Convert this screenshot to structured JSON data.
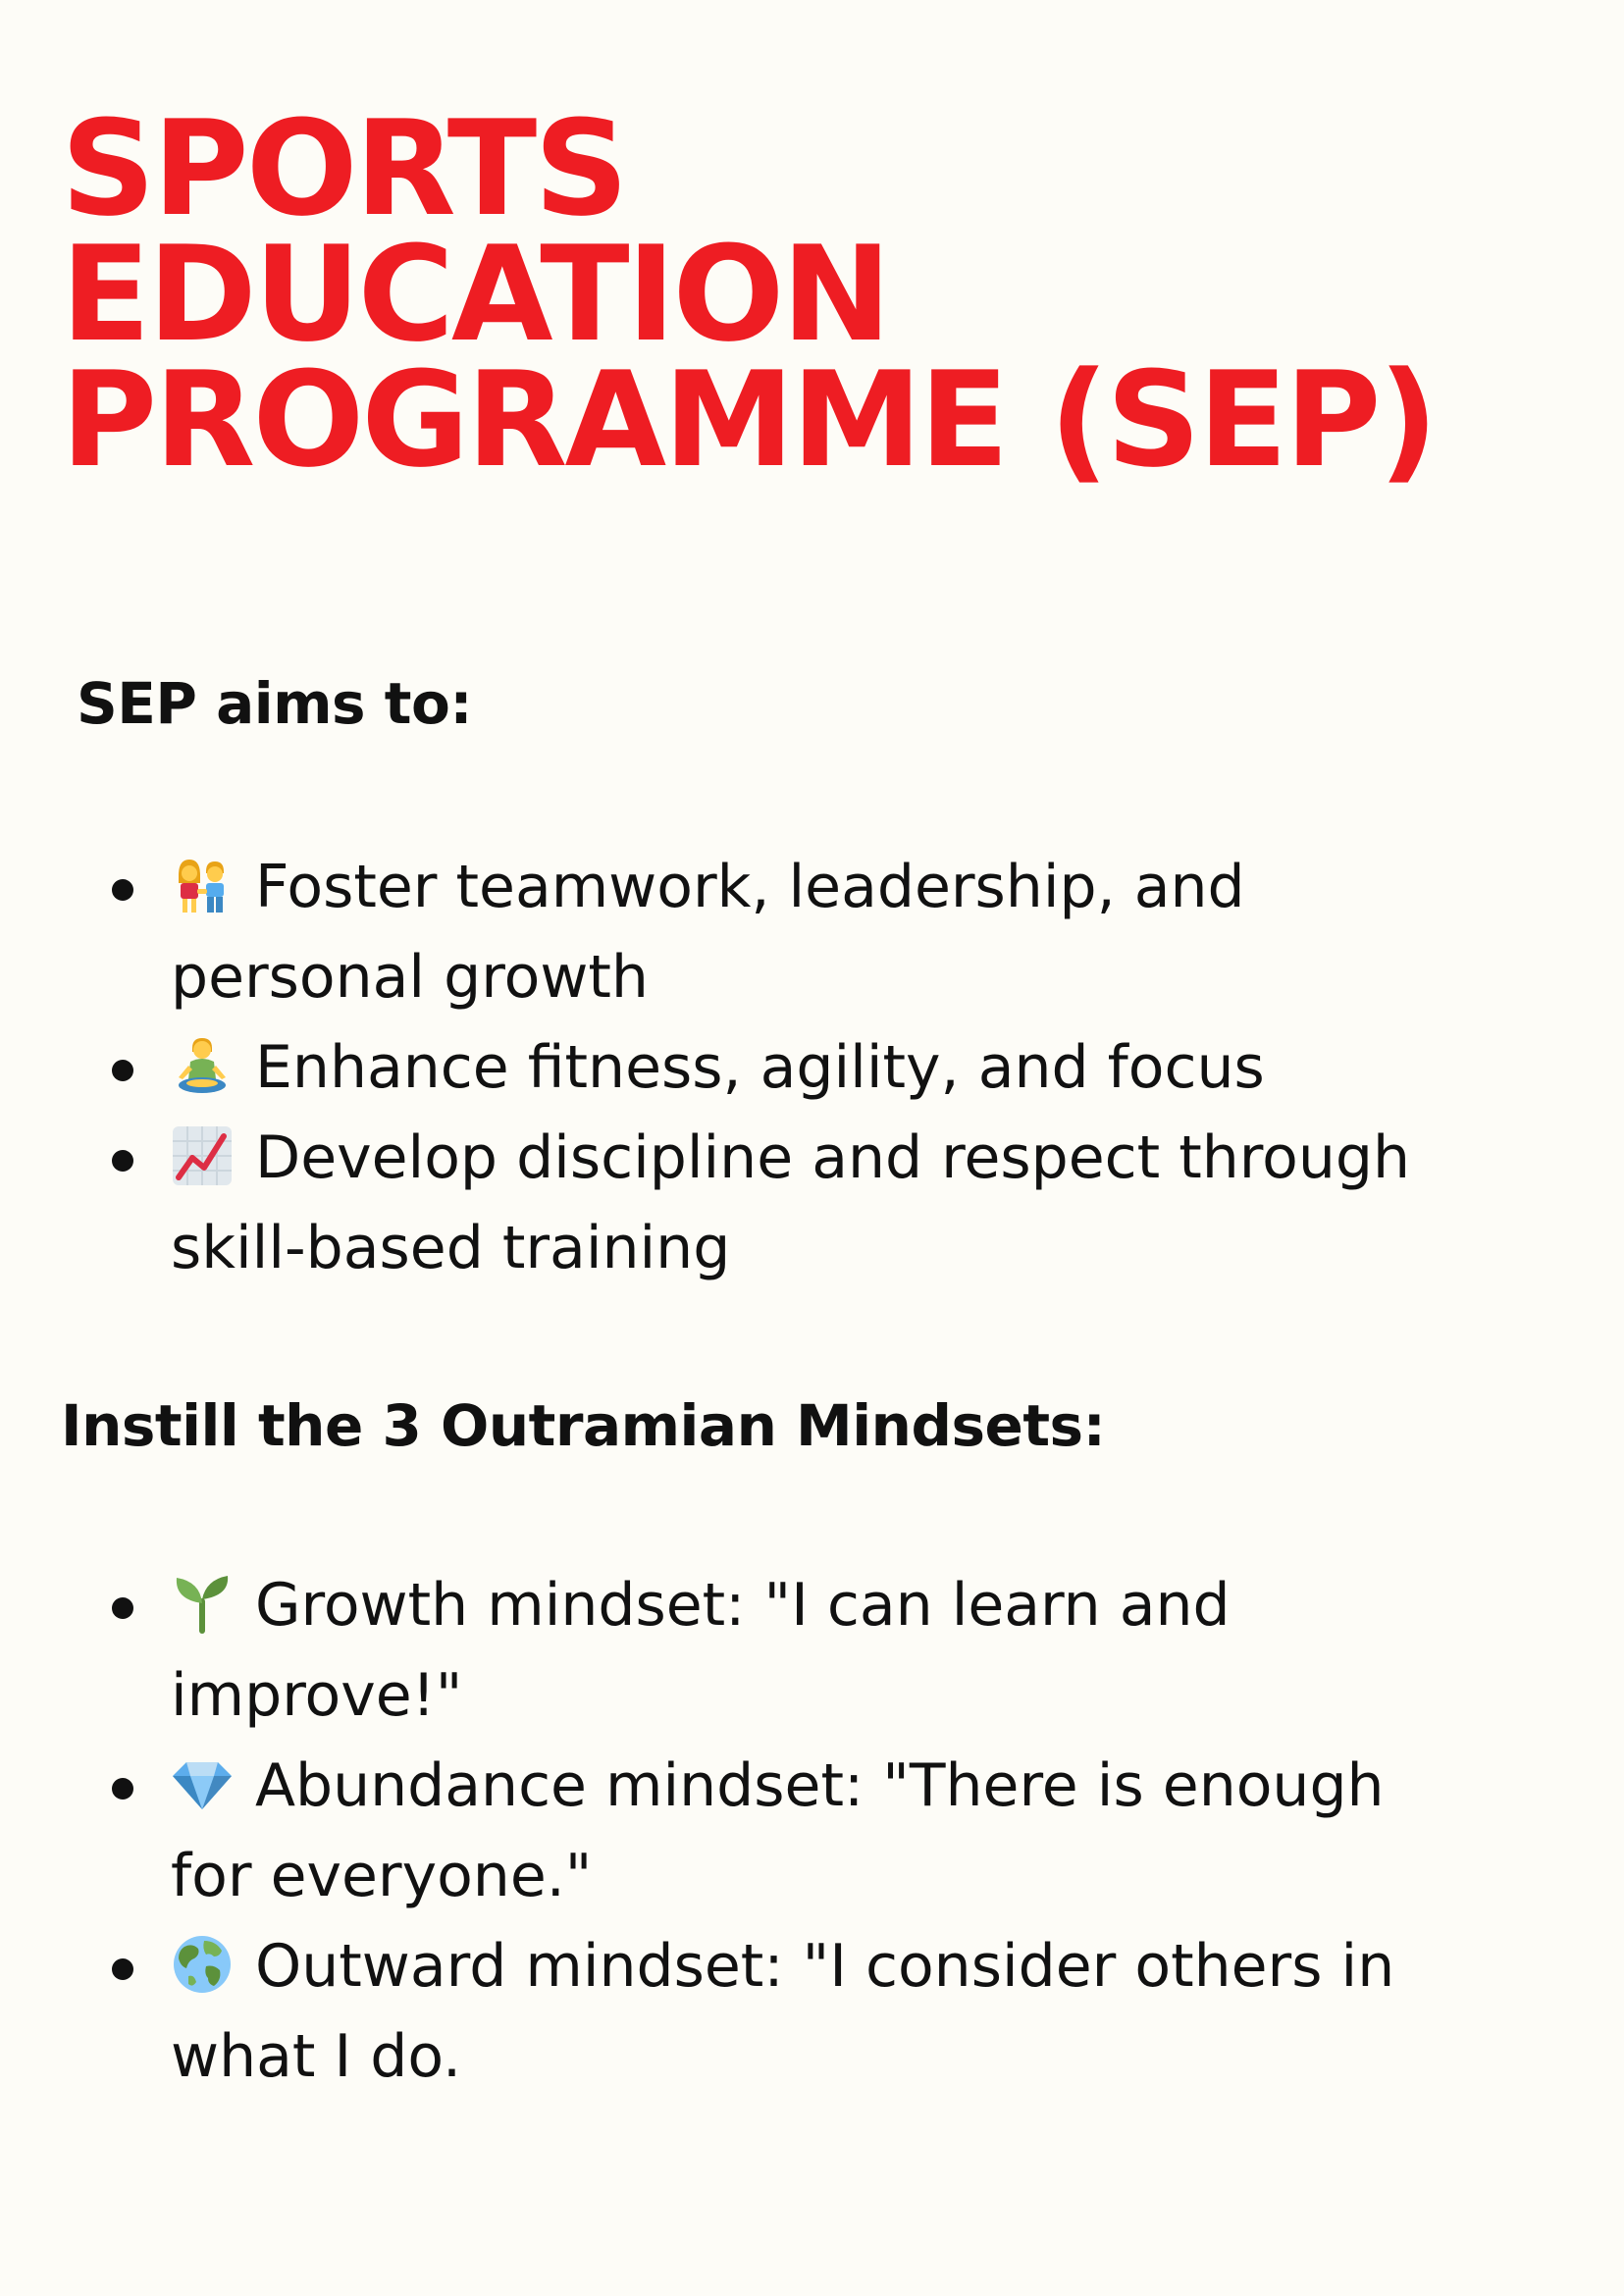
{
  "title": {
    "line1": "SPORTS",
    "line2": "EDUCATION",
    "line3": "PROGRAMME (SEP)"
  },
  "colors": {
    "title": "#ee1d23",
    "text": "#111111",
    "background": "#fdfcf7"
  },
  "aims": {
    "heading": "SEP aims to:",
    "items": [
      {
        "icon": "couple-icon",
        "line1": "Foster teamwork, leadership, and",
        "line2": "personal growth"
      },
      {
        "icon": "meditation-icon",
        "line1": "Enhance fitness, agility, and focus"
      },
      {
        "icon": "chart-increasing-icon",
        "line1": "Develop discipline and respect through",
        "line2": "skill-based training"
      }
    ]
  },
  "mindsets": {
    "heading": "Instill the 3 Outramian Mindsets:",
    "items": [
      {
        "icon": "seedling-icon",
        "line1": "Growth mindset: \"I can learn and",
        "line2": "improve!\""
      },
      {
        "icon": "gem-icon",
        "line1": "Abundance mindset: \"There is enough",
        "line2": "for everyone.\""
      },
      {
        "icon": "globe-icon",
        "line1": "Outward mindset: \"I consider others in",
        "line2": "what I do."
      }
    ]
  }
}
